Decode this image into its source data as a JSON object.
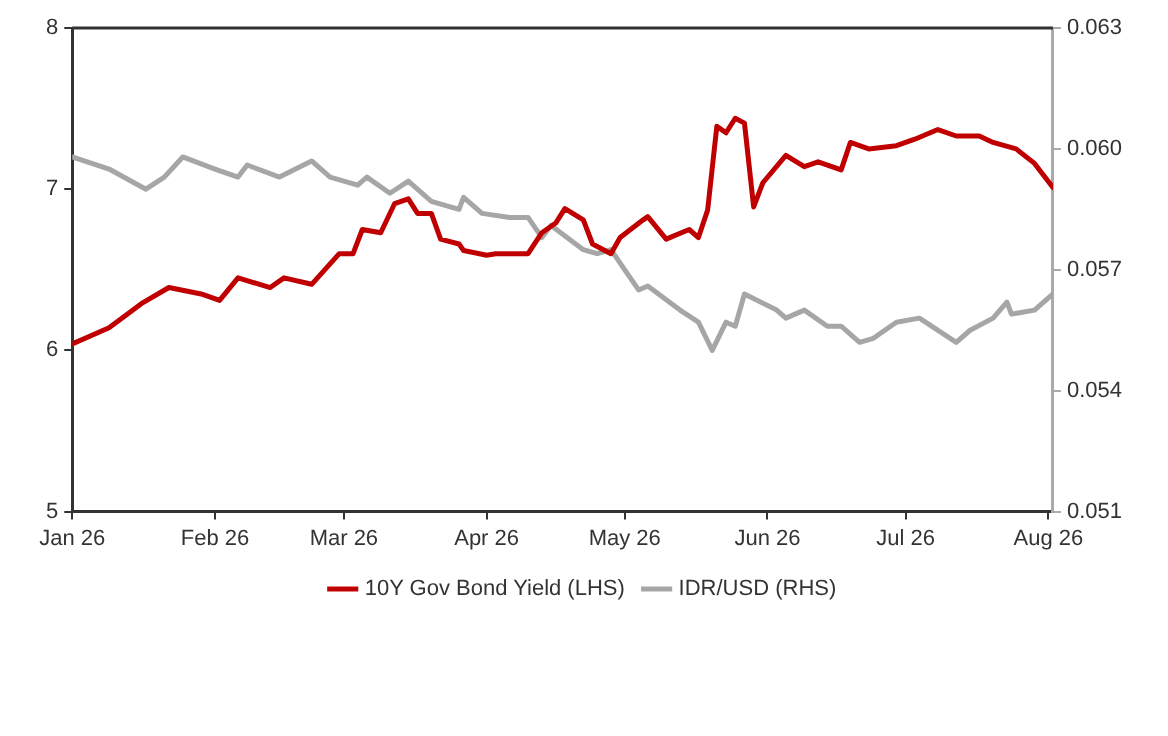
{
  "chart_data": {
    "type": "line",
    "xlim": [
      "2026-01-01",
      "2026-08-02"
    ],
    "xticks": [
      {
        "value": "2026-01-01",
        "label": "Jan 26"
      },
      {
        "value": "2026-02-01",
        "label": "Feb 26"
      },
      {
        "value": "2026-03-01",
        "label": "Mar 26"
      },
      {
        "value": "2026-04-01",
        "label": "Apr 26"
      },
      {
        "value": "2026-05-01",
        "label": "May 26"
      },
      {
        "value": "2026-06-01",
        "label": "Jun 26"
      },
      {
        "value": "2026-07-01",
        "label": "Jul 26"
      },
      {
        "value": "2026-08-01",
        "label": "Aug 26"
      }
    ],
    "ylim": [
      5,
      8
    ],
    "yticks": [
      5,
      6,
      7,
      8
    ],
    "y2lim": [
      0.051,
      0.063
    ],
    "y2ticks": [
      0.051,
      0.054,
      0.057,
      {
        "value": 0.06,
        "label": "0.060"
      },
      0.063
    ],
    "legend": "bottom",
    "grid": false,
    "marker": "none",
    "line_style": "solid",
    "series": [
      {
        "name": "10Y Gov Bond Yield (LHS)",
        "color": "#c00000",
        "axis": "y",
        "x": [
          "2026-01-01",
          "2026-01-09",
          "2026-01-16",
          "2026-01-22",
          "2026-01-29",
          "2026-02-02",
          "2026-02-06",
          "2026-02-13",
          "2026-02-16",
          "2026-02-22",
          "2026-02-28",
          "2026-03-03",
          "2026-03-05",
          "2026-03-09",
          "2026-03-12",
          "2026-03-15",
          "2026-03-17",
          "2026-03-20",
          "2026-03-22",
          "2026-03-26",
          "2026-03-27",
          "2026-04-01",
          "2026-04-03",
          "2026-04-10",
          "2026-04-13",
          "2026-04-16",
          "2026-04-18",
          "2026-04-22",
          "2026-04-24",
          "2026-04-28",
          "2026-04-30",
          "2026-05-05",
          "2026-05-06",
          "2026-05-10",
          "2026-05-15",
          "2026-05-17",
          "2026-05-19",
          "2026-05-21",
          "2026-05-23",
          "2026-05-25",
          "2026-05-27",
          "2026-05-29",
          "2026-05-31",
          "2026-06-05",
          "2026-06-09",
          "2026-06-12",
          "2026-06-17",
          "2026-06-19",
          "2026-06-23",
          "2026-06-29",
          "2026-07-03",
          "2026-07-08",
          "2026-07-12",
          "2026-07-17",
          "2026-07-20",
          "2026-07-25",
          "2026-07-29",
          "2026-08-02"
        ],
        "values": [
          6.04,
          6.14,
          6.29,
          6.39,
          6.35,
          6.31,
          6.45,
          6.39,
          6.45,
          6.41,
          6.6,
          6.6,
          6.75,
          6.73,
          6.91,
          6.94,
          6.85,
          6.85,
          6.69,
          6.66,
          6.62,
          6.59,
          6.6,
          6.6,
          6.73,
          6.79,
          6.88,
          6.81,
          6.66,
          6.6,
          6.7,
          6.81,
          6.83,
          6.69,
          6.75,
          6.7,
          6.87,
          7.39,
          7.35,
          7.44,
          7.41,
          6.89,
          7.04,
          7.21,
          7.14,
          7.17,
          7.12,
          7.29,
          7.25,
          7.27,
          7.31,
          7.37,
          7.33,
          7.33,
          7.29,
          7.25,
          7.16,
          7.01
        ]
      },
      {
        "name": "IDR/USD (RHS)",
        "color": "#a6a6a6",
        "axis": "y2",
        "x": [
          "2026-01-01",
          "2026-01-09",
          "2026-01-17",
          "2026-01-21",
          "2026-01-25",
          "2026-02-01",
          "2026-02-06",
          "2026-02-08",
          "2026-02-15",
          "2026-02-22",
          "2026-02-26",
          "2026-03-04",
          "2026-03-06",
          "2026-03-11",
          "2026-03-15",
          "2026-03-20",
          "2026-03-26",
          "2026-03-27",
          "2026-03-31",
          "2026-04-06",
          "2026-04-10",
          "2026-04-13",
          "2026-04-15",
          "2026-04-22",
          "2026-04-25",
          "2026-04-28",
          "2026-05-01",
          "2026-05-04",
          "2026-05-06",
          "2026-05-13",
          "2026-05-17",
          "2026-05-20",
          "2026-05-23",
          "2026-05-25",
          "2026-05-27",
          "2026-06-03",
          "2026-06-05",
          "2026-06-09",
          "2026-06-14",
          "2026-06-17",
          "2026-06-21",
          "2026-06-24",
          "2026-06-29",
          "2026-07-04",
          "2026-07-12",
          "2026-07-15",
          "2026-07-20",
          "2026-07-23",
          "2026-07-24",
          "2026-07-29",
          "2026-08-02"
        ],
        "values": [
          0.0598,
          0.0595,
          0.059,
          0.0593,
          0.0598,
          0.0595,
          0.0593,
          0.0596,
          0.0593,
          0.0597,
          0.0593,
          0.0591,
          0.0593,
          0.0589,
          0.0592,
          0.0587,
          0.0585,
          0.0588,
          0.0584,
          0.0583,
          0.0583,
          0.0578,
          0.0581,
          0.0575,
          0.0574,
          0.0575,
          0.057,
          0.0565,
          0.0566,
          0.056,
          0.0557,
          0.055,
          0.0557,
          0.0556,
          0.0564,
          0.056,
          0.0558,
          0.056,
          0.0556,
          0.0556,
          0.0552,
          0.0553,
          0.0557,
          0.0558,
          0.0552,
          0.0555,
          0.0558,
          0.0562,
          0.0559,
          0.056,
          0.0564
        ]
      }
    ]
  }
}
